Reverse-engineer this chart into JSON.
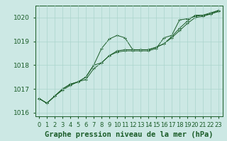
{
  "title": "Graphe pression niveau de la mer (hPa)",
  "background_color": "#cce8e4",
  "grid_color": "#aad4cc",
  "line_color": "#1a5c28",
  "x_values": [
    0,
    1,
    2,
    3,
    4,
    5,
    6,
    7,
    8,
    9,
    10,
    11,
    12,
    13,
    14,
    15,
    16,
    17,
    18,
    19,
    20,
    21,
    22,
    23
  ],
  "series1": [
    1016.6,
    1016.4,
    1016.7,
    1017.0,
    1017.2,
    1017.3,
    1017.5,
    1018.0,
    1018.7,
    1019.1,
    1019.25,
    1019.15,
    1018.65,
    1018.65,
    1018.65,
    1018.75,
    1018.9,
    1019.2,
    1019.55,
    1019.85,
    1020.1,
    1020.1,
    1020.2,
    1020.3
  ],
  "series2": [
    1016.6,
    1016.4,
    1016.7,
    1016.95,
    1017.15,
    1017.3,
    1017.4,
    1017.85,
    1018.1,
    1018.4,
    1018.6,
    1018.65,
    1018.65,
    1018.65,
    1018.65,
    1018.75,
    1018.9,
    1019.15,
    1019.45,
    1019.75,
    1020.0,
    1020.05,
    1020.15,
    1020.25
  ],
  "series3": [
    1016.6,
    1016.4,
    1016.7,
    1017.0,
    1017.2,
    1017.3,
    1017.5,
    1018.0,
    1018.1,
    1018.4,
    1018.55,
    1018.6,
    1018.6,
    1018.6,
    1018.6,
    1018.7,
    1019.15,
    1019.25,
    1019.9,
    1019.95,
    1020.05,
    1020.1,
    1020.15,
    1020.3
  ],
  "ylim": [
    1015.85,
    1020.5
  ],
  "yticks": [
    1016,
    1017,
    1018,
    1019,
    1020
  ],
  "label_fontsize": 6.5,
  "tick_fontsize": 6.5,
  "title_fontsize": 7.5
}
